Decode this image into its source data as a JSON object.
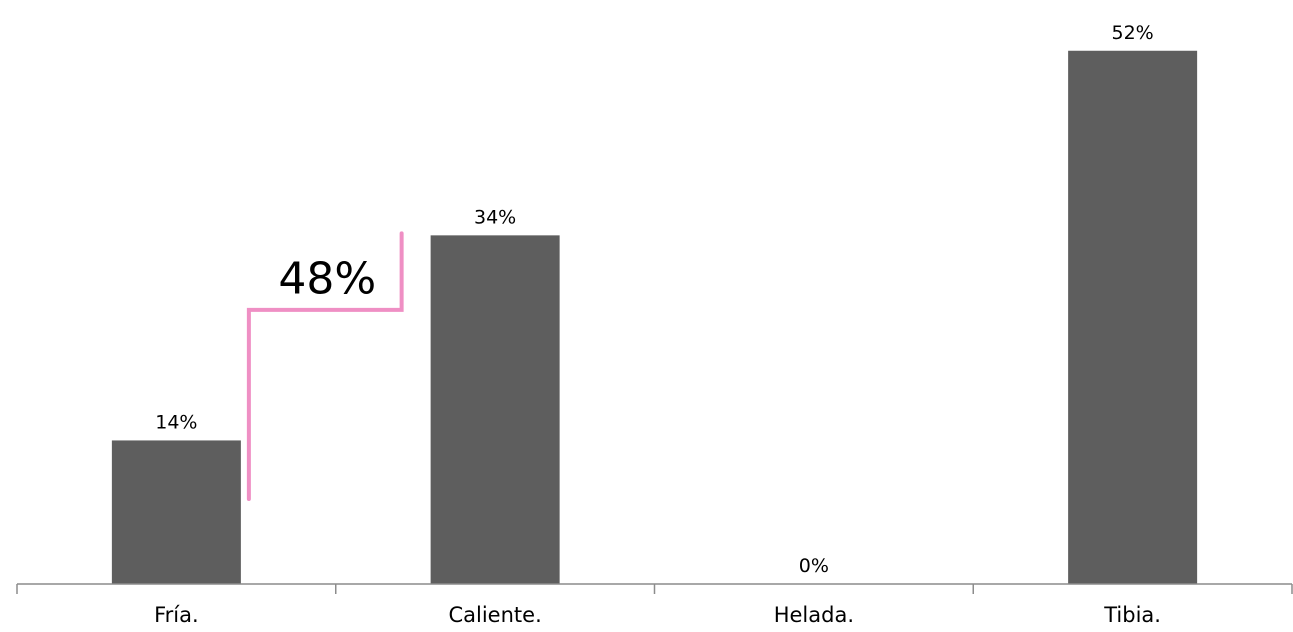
{
  "chart_data": {
    "type": "bar",
    "categories": [
      "Fría.",
      "Caliente.",
      "Helada.",
      "Tibia."
    ],
    "values": [
      14,
      34,
      0,
      52
    ],
    "value_labels": [
      "14%",
      "34%",
      "0%",
      "52%"
    ],
    "ylim": [
      0,
      55
    ],
    "grid": false,
    "bar_color": "#5e5e5e",
    "axis_color": "#8c8c8c",
    "annotation": {
      "text": "48%",
      "spans": [
        "Fría.",
        "Caliente."
      ],
      "line_color": "#ef8fc4"
    }
  }
}
